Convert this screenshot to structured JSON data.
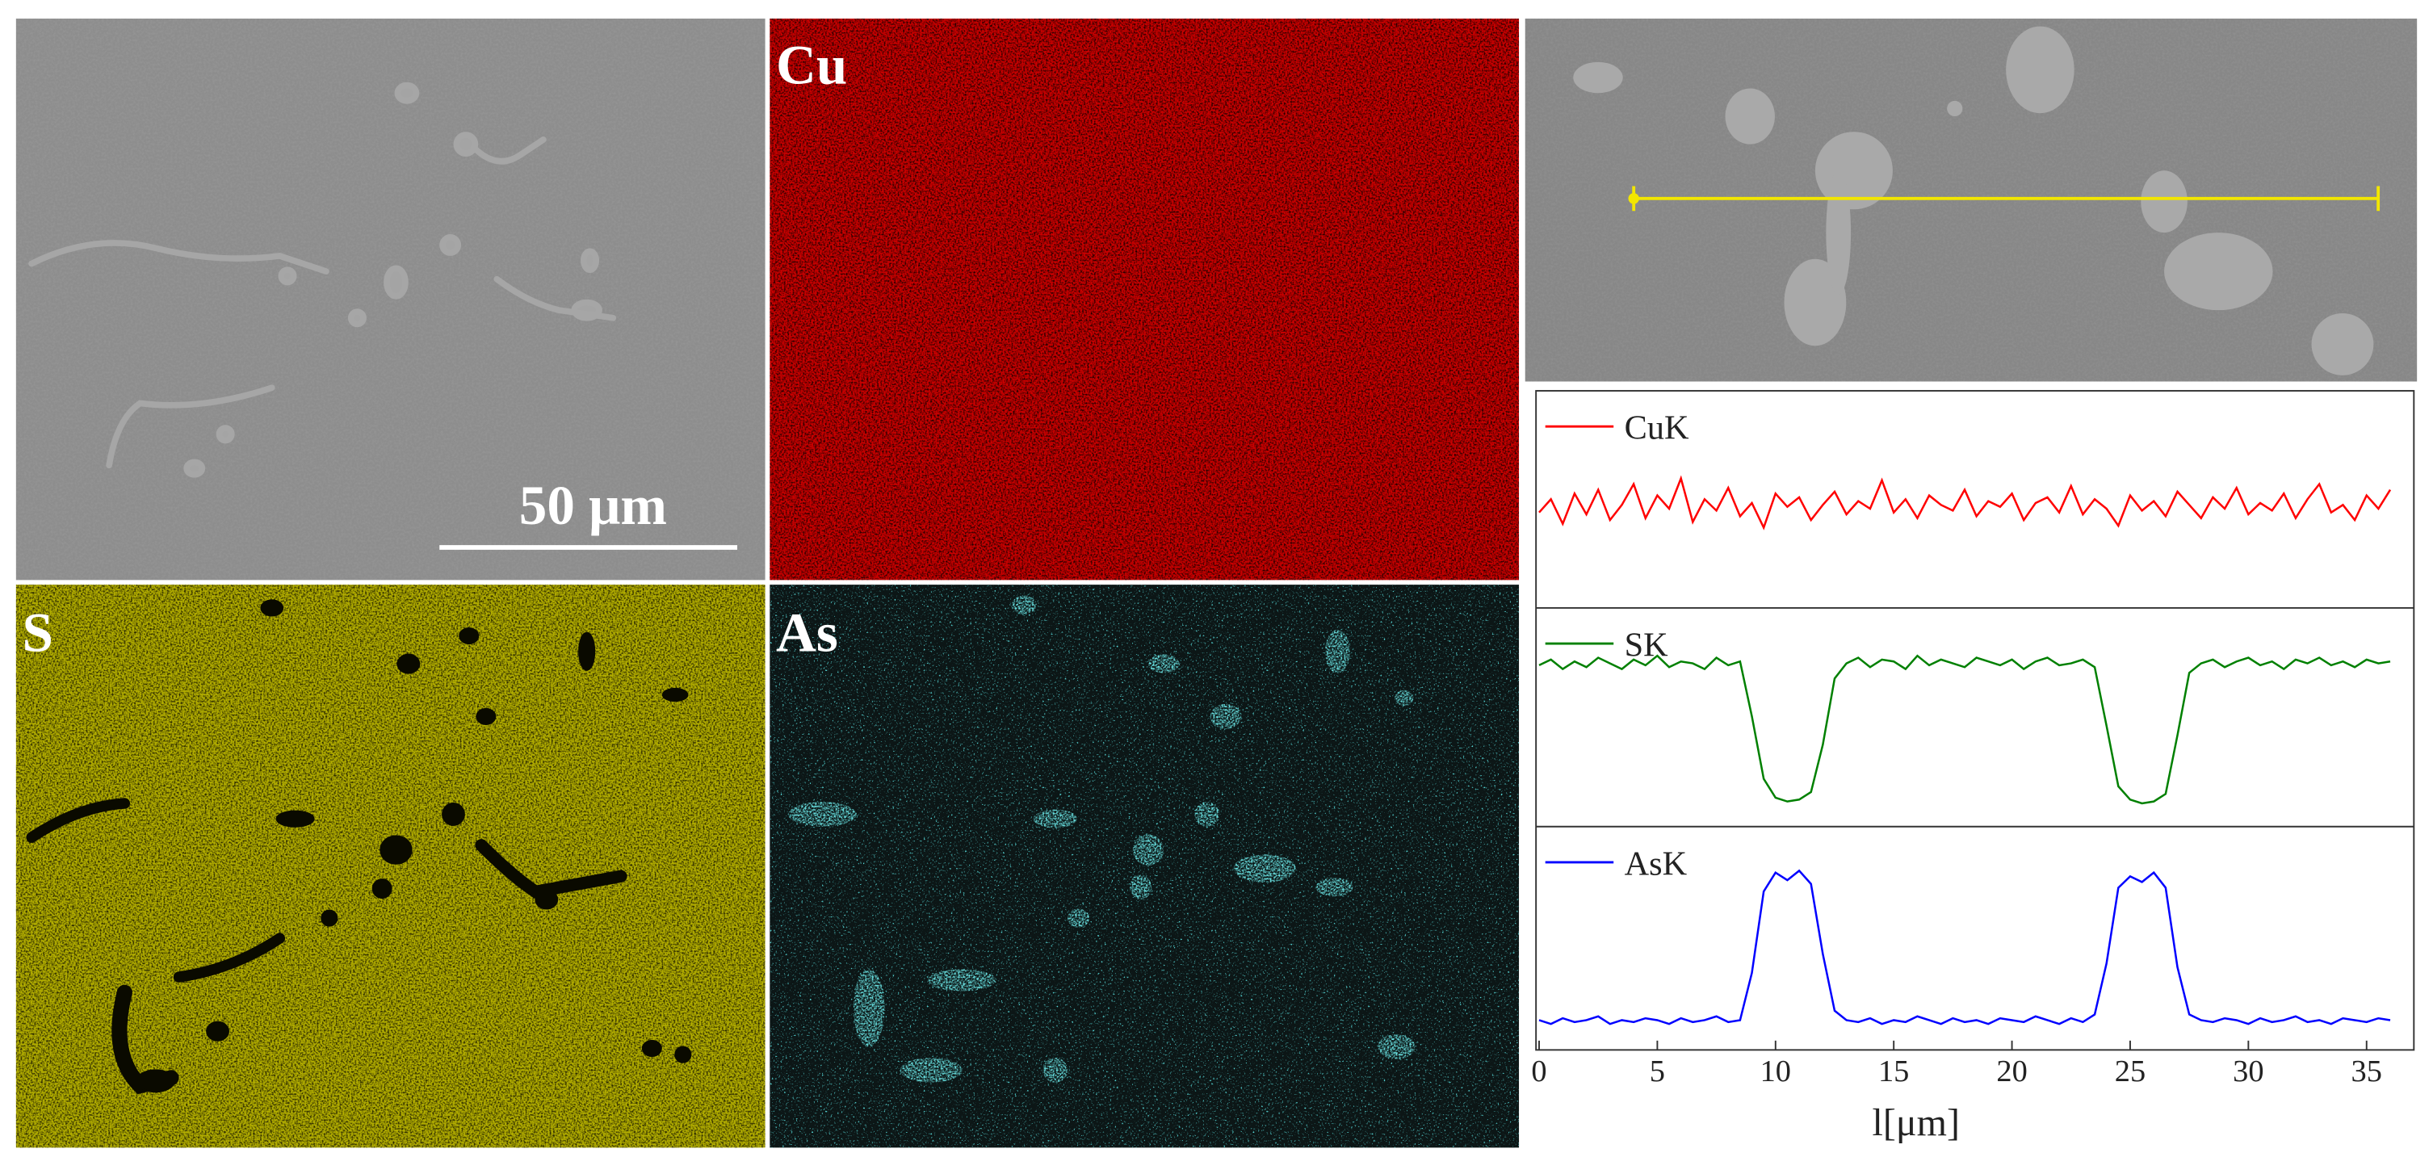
{
  "figure": {
    "panel_labels": [
      "Cu",
      "S",
      "As"
    ],
    "scale_bar": "50 μm"
  },
  "chart_data": {
    "type": "line",
    "xlabel": "l[μm]",
    "x": [
      0,
      0.5,
      1,
      1.5,
      2,
      2.5,
      3,
      3.5,
      4,
      4.5,
      5,
      5.5,
      6,
      6.5,
      7,
      7.5,
      8,
      8.5,
      9,
      9.5,
      10,
      10.5,
      11,
      11.5,
      12,
      12.5,
      13,
      13.5,
      14,
      14.5,
      15,
      15.5,
      16,
      16.5,
      17,
      17.5,
      18,
      18.5,
      19,
      19.5,
      20,
      20.5,
      21,
      21.5,
      22,
      22.5,
      23,
      23.5,
      24,
      24.5,
      25,
      25.5,
      26,
      26.5,
      27,
      27.5,
      28,
      28.5,
      29,
      29.5,
      30,
      30.5,
      31,
      31.5,
      32,
      32.5,
      33,
      33.5,
      34,
      34.5,
      35,
      35.5,
      36
    ],
    "xlim": [
      0,
      37
    ],
    "xticks": [
      0,
      5,
      10,
      15,
      20,
      25,
      30,
      35
    ],
    "ylim": [
      0,
      1
    ],
    "series": [
      {
        "name": "CuK",
        "color": "#ff0000",
        "values": [
          0.48,
          0.55,
          0.42,
          0.58,
          0.47,
          0.6,
          0.44,
          0.52,
          0.63,
          0.45,
          0.57,
          0.5,
          0.66,
          0.43,
          0.55,
          0.49,
          0.61,
          0.46,
          0.53,
          0.4,
          0.58,
          0.51,
          0.56,
          0.44,
          0.52,
          0.59,
          0.47,
          0.54,
          0.5,
          0.65,
          0.48,
          0.55,
          0.45,
          0.57,
          0.52,
          0.49,
          0.6,
          0.46,
          0.54,
          0.51,
          0.58,
          0.44,
          0.53,
          0.56,
          0.48,
          0.62,
          0.47,
          0.55,
          0.5,
          0.41,
          0.57,
          0.49,
          0.54,
          0.46,
          0.59,
          0.52,
          0.45,
          0.56,
          0.5,
          0.61,
          0.47,
          0.53,
          0.49,
          0.58,
          0.45,
          0.55,
          0.63,
          0.48,
          0.52,
          0.44,
          0.57,
          0.5,
          0.6
        ]
      },
      {
        "name": "SK",
        "color": "#008000",
        "values": [
          0.82,
          0.85,
          0.8,
          0.84,
          0.81,
          0.86,
          0.83,
          0.8,
          0.85,
          0.82,
          0.87,
          0.81,
          0.84,
          0.83,
          0.8,
          0.86,
          0.82,
          0.84,
          0.55,
          0.22,
          0.12,
          0.1,
          0.11,
          0.15,
          0.4,
          0.75,
          0.83,
          0.86,
          0.81,
          0.85,
          0.84,
          0.8,
          0.87,
          0.82,
          0.85,
          0.83,
          0.81,
          0.86,
          0.84,
          0.82,
          0.85,
          0.8,
          0.84,
          0.86,
          0.82,
          0.83,
          0.85,
          0.81,
          0.5,
          0.18,
          0.11,
          0.09,
          0.1,
          0.14,
          0.45,
          0.78,
          0.83,
          0.85,
          0.81,
          0.84,
          0.86,
          0.82,
          0.84,
          0.8,
          0.85,
          0.83,
          0.86,
          0.82,
          0.84,
          0.81,
          0.85,
          0.83,
          0.84
        ]
      },
      {
        "name": "AsK",
        "color": "#0000ff",
        "values": [
          0.1,
          0.08,
          0.11,
          0.09,
          0.1,
          0.12,
          0.08,
          0.1,
          0.09,
          0.11,
          0.1,
          0.08,
          0.11,
          0.09,
          0.1,
          0.12,
          0.09,
          0.1,
          0.35,
          0.78,
          0.88,
          0.84,
          0.89,
          0.82,
          0.45,
          0.15,
          0.1,
          0.09,
          0.11,
          0.08,
          0.1,
          0.09,
          0.12,
          0.1,
          0.08,
          0.11,
          0.09,
          0.1,
          0.08,
          0.11,
          0.1,
          0.09,
          0.12,
          0.1,
          0.08,
          0.11,
          0.09,
          0.13,
          0.4,
          0.8,
          0.86,
          0.83,
          0.88,
          0.8,
          0.38,
          0.13,
          0.1,
          0.09,
          0.11,
          0.1,
          0.08,
          0.11,
          0.09,
          0.1,
          0.12,
          0.09,
          0.1,
          0.08,
          0.11,
          0.1,
          0.09,
          0.11,
          0.1
        ]
      }
    ]
  }
}
